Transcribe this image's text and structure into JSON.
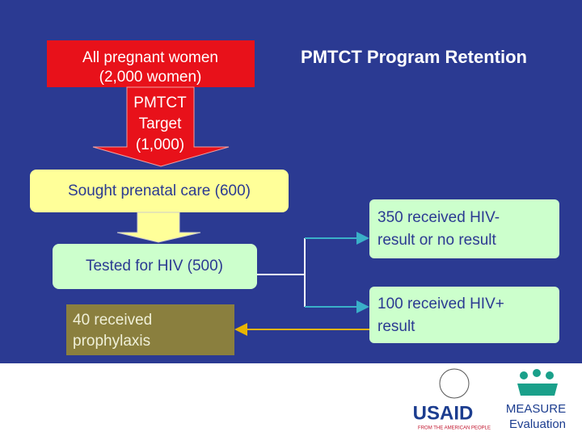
{
  "title": "PMTCT Program Retention",
  "nodes": [
    {
      "lines": [
        "All pregnant women",
        "(2,000 women)"
      ]
    },
    {
      "lines": [
        "PMTCT",
        "Target",
        "(1,000)"
      ]
    },
    {
      "lines": [
        "Sought prenatal care (600)"
      ]
    },
    {
      "lines": [
        "Tested for HIV (500)"
      ]
    },
    {
      "lines": [
        "40 received",
        "prophylaxis"
      ]
    },
    {
      "lines": [
        "350 received HIV-",
        "result or no result"
      ]
    },
    {
      "lines": [
        "100 received HIV+",
        "result"
      ]
    }
  ],
  "logos": {
    "usaid": "USAID",
    "usaid_tagline": "FROM THE AMERICAN PEOPLE",
    "measure": "MEASURE",
    "evaluation": "Evaluation"
  }
}
